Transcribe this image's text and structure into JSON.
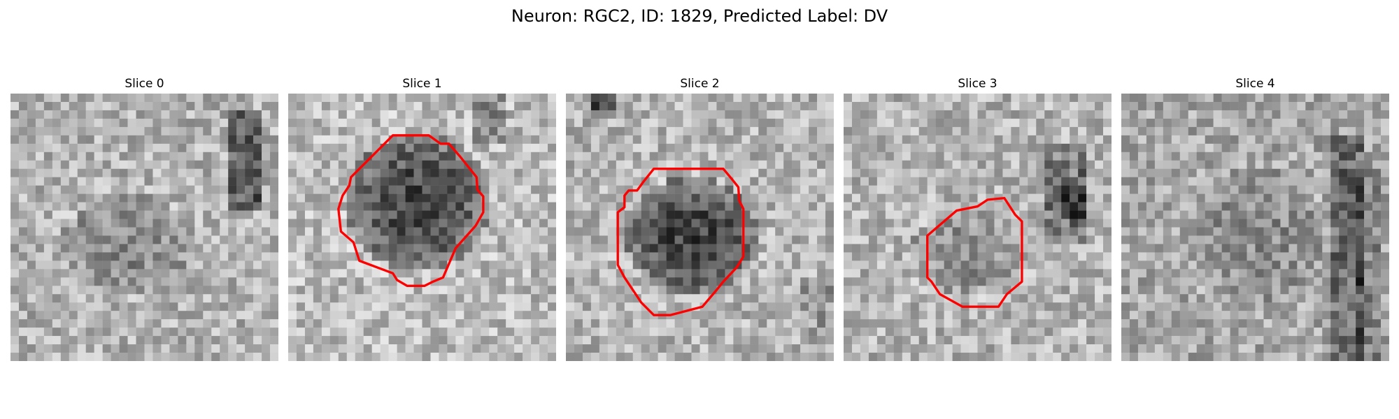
{
  "figure": {
    "title": "Neuron: RGC2, ID: 1829, Predicted Label: DV"
  },
  "slices": [
    {
      "title": "Slice 0",
      "has_contour": false
    },
    {
      "title": "Slice 1",
      "has_contour": true
    },
    {
      "title": "Slice 2",
      "has_contour": true
    },
    {
      "title": "Slice 3",
      "has_contour": true
    },
    {
      "title": "Slice 4",
      "has_contour": false
    }
  ],
  "colors": {
    "contour": "#ff0000",
    "background": "#ffffff"
  },
  "image_style": "grayscale pixelated microscopy crop (32x32)"
}
